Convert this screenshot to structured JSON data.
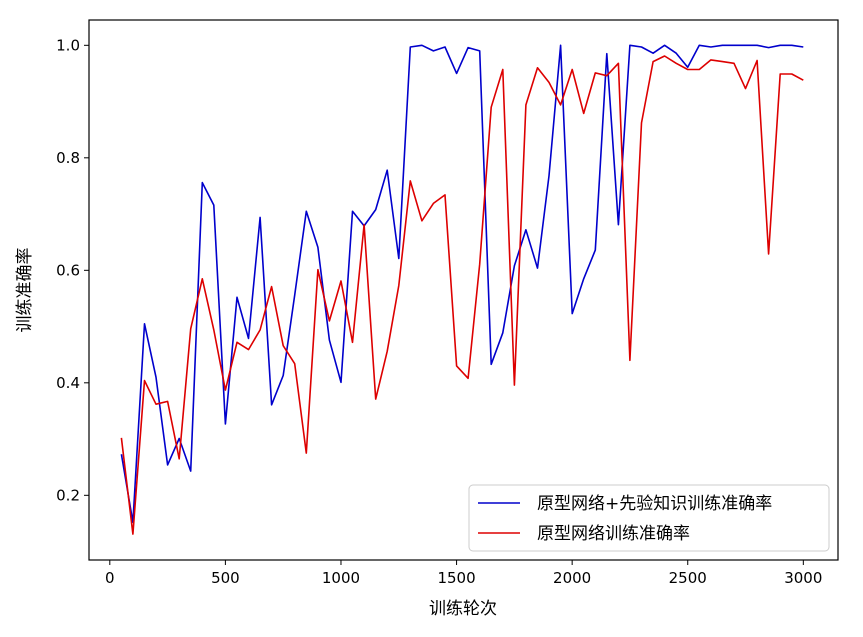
{
  "chart_data": {
    "type": "line",
    "title": "",
    "xlabel": "训练轮次",
    "ylabel": "训练准确率",
    "xlim": [
      -90,
      3150
    ],
    "ylim": [
      0.085,
      1.045
    ],
    "xticks": [
      0,
      500,
      1000,
      1500,
      2000,
      2500,
      3000
    ],
    "yticks": [
      0.2,
      0.4,
      0.6,
      0.8,
      1.0
    ],
    "xtick_labels": [
      "0",
      "500",
      "1000",
      "1500",
      "2000",
      "2500",
      "3000"
    ],
    "ytick_labels": [
      "0.2",
      "0.4",
      "0.6",
      "0.8",
      "1.0"
    ],
    "grid": false,
    "legend_position": "lower-right",
    "x": [
      50,
      100,
      150,
      200,
      250,
      300,
      350,
      400,
      450,
      500,
      550,
      600,
      650,
      700,
      750,
      800,
      850,
      900,
      950,
      1000,
      1050,
      1100,
      1150,
      1200,
      1250,
      1300,
      1350,
      1400,
      1450,
      1500,
      1550,
      1600,
      1650,
      1700,
      1750,
      1800,
      1850,
      1900,
      1950,
      2000,
      2050,
      2100,
      2150,
      2200,
      2250,
      2300,
      2350,
      2400,
      2450,
      2500,
      2550,
      2600,
      2650,
      2700,
      2750,
      2800,
      2850,
      2900,
      2950,
      3000
    ],
    "series": [
      {
        "name": "原型网络+先验知识训练准确率",
        "color": "#0000cc",
        "values": [
          0.273,
          0.152,
          0.505,
          0.41,
          0.254,
          0.301,
          0.243,
          0.756,
          0.716,
          0.327,
          0.552,
          0.479,
          0.694,
          0.361,
          0.413,
          0.556,
          0.705,
          0.641,
          0.476,
          0.401,
          0.705,
          0.679,
          0.708,
          0.778,
          0.621,
          0.997,
          1.0,
          0.99,
          0.997,
          0.95,
          0.996,
          0.99,
          0.433,
          0.489,
          0.608,
          0.672,
          0.604,
          0.768,
          1.0,
          0.523,
          0.585,
          0.636,
          0.985,
          0.681,
          1.0,
          0.997,
          0.986,
          1.0,
          0.986,
          0.961,
          1.0,
          0.997,
          1.0,
          1.0,
          1.0,
          1.0,
          0.996,
          1.0,
          1.0,
          0.997
        ]
      },
      {
        "name": "原型网络训练准确率",
        "color": "#dd0000",
        "values": [
          0.302,
          0.131,
          0.404,
          0.362,
          0.367,
          0.265,
          0.496,
          0.585,
          0.494,
          0.387,
          0.472,
          0.459,
          0.494,
          0.571,
          0.466,
          0.434,
          0.275,
          0.601,
          0.51,
          0.581,
          0.472,
          0.681,
          0.371,
          0.456,
          0.573,
          0.759,
          0.688,
          0.719,
          0.734,
          0.43,
          0.408,
          0.611,
          0.89,
          0.957,
          0.396,
          0.894,
          0.96,
          0.934,
          0.894,
          0.957,
          0.879,
          0.951,
          0.946,
          0.968,
          0.44,
          0.862,
          0.971,
          0.981,
          0.968,
          0.957,
          0.957,
          0.974,
          0.971,
          0.968,
          0.923,
          0.973,
          0.629,
          0.949,
          0.949,
          0.938
        ]
      }
    ]
  }
}
